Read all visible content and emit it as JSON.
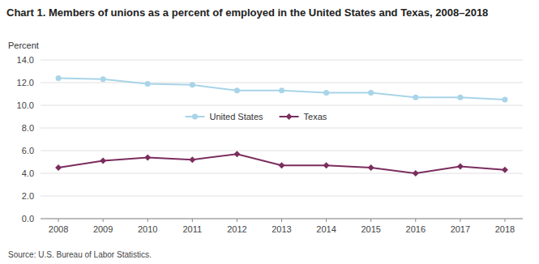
{
  "chart_data": {
    "type": "line",
    "title": "Chart 1.  Members of unions as a percent of employed in the United States and Texas, 2008–2018",
    "y_label": "Percent",
    "source": "Source: U.S. Bureau of Labor Statistics.",
    "x": [
      2008,
      2009,
      2010,
      2011,
      2012,
      2013,
      2014,
      2015,
      2016,
      2017,
      2018
    ],
    "series": [
      {
        "name": "United States",
        "color": "#a8d4e8",
        "marker": "circle",
        "values": [
          12.4,
          12.3,
          11.9,
          11.8,
          11.3,
          11.3,
          11.1,
          11.1,
          10.7,
          10.7,
          10.5
        ]
      },
      {
        "name": "Texas",
        "color": "#7b2d5e",
        "marker": "diamond",
        "values": [
          4.5,
          5.1,
          5.4,
          5.2,
          5.7,
          4.7,
          4.7,
          4.5,
          4.0,
          4.6,
          4.3
        ]
      }
    ],
    "xlim": [
      2007.6,
      2018.4
    ],
    "xticks": [
      2008,
      2009,
      2010,
      2011,
      2012,
      2013,
      2014,
      2015,
      2016,
      2017,
      2018
    ],
    "ylim": [
      0.0,
      14.0
    ],
    "yticks": [
      {
        "value": 0.0,
        "label": "0.0"
      },
      {
        "value": 2.0,
        "label": "2.0"
      },
      {
        "value": 4.0,
        "label": "4.0"
      },
      {
        "value": 6.0,
        "label": "6.0"
      },
      {
        "value": 8.0,
        "label": "8.0"
      },
      {
        "value": 10.0,
        "label": "10.0"
      },
      {
        "value": 12.0,
        "label": "12.0"
      },
      {
        "value": 14.0,
        "label": "14.0"
      }
    ],
    "grid": true,
    "legend": "top"
  }
}
